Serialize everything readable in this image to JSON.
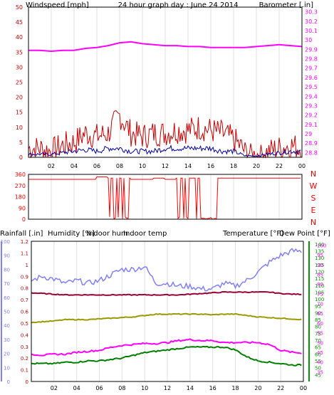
{
  "colors": {
    "wind": "#cc0000",
    "windAvg": "#0000aa",
    "baro": "#ff00ff",
    "dir": "#ff0000",
    "rain": "#cc0000",
    "hum": "#8080ff",
    "inHum": "#999900",
    "inTemp": "#990033",
    "temp": "#008000",
    "dew": "#ff00ff",
    "tempAxis": "#009900",
    "title": "#0000cc"
  },
  "chart_data": [
    {
      "type": "line",
      "title": "24 hour graph day : June 24 2014",
      "left_axis_label": "Windspeed [mph]",
      "right_axis_label": "Barometer [.in]",
      "left_ticks": [
        "0",
        "5",
        "10",
        "15",
        "20",
        "25",
        "30",
        "35",
        "40",
        "45",
        "50"
      ],
      "right_ticks": [
        "28.8",
        "28.9",
        "29",
        "29.1",
        "29.2",
        "29.3",
        "29.4",
        "29.5",
        "29.6",
        "29.7",
        "29.8",
        "29.9",
        "30",
        "30.1",
        "30.2",
        "30.3"
      ],
      "x_ticks": [
        "02",
        "04",
        "06",
        "08",
        "10",
        "12",
        "14",
        "16",
        "18",
        "20",
        "22",
        "00"
      ],
      "xlim": [
        0,
        24
      ],
      "ylim_left": [
        0,
        50
      ],
      "ylim_right": [
        28.75,
        30.35
      ],
      "series": [
        {
          "key": "gust",
          "x": [
            0,
            1,
            2,
            3,
            4,
            5,
            6,
            7,
            8,
            9,
            10,
            11,
            12,
            13,
            14,
            15,
            16,
            17,
            18,
            19,
            20,
            21,
            22,
            23,
            24
          ],
          "values": [
            3,
            3,
            2,
            4,
            5,
            8,
            7,
            8,
            14,
            8,
            7,
            8,
            8,
            9,
            9,
            10,
            9,
            8,
            6,
            2,
            1,
            2,
            3,
            4,
            3
          ]
        },
        {
          "key": "avg",
          "x": [
            0,
            1,
            2,
            3,
            4,
            5,
            6,
            7,
            8,
            9,
            10,
            11,
            12,
            13,
            14,
            15,
            16,
            17,
            18,
            19,
            20,
            21,
            22,
            23,
            24
          ],
          "values": [
            1,
            1,
            1,
            1.5,
            2,
            2.5,
            2,
            3,
            3,
            2,
            2,
            2,
            3,
            3,
            3,
            3,
            3,
            2,
            2,
            0.5,
            0.5,
            1,
            1.5,
            2,
            2
          ]
        },
        {
          "key": "baro",
          "x": [
            0,
            1,
            2,
            3,
            4,
            5,
            6,
            7,
            8,
            9,
            10,
            11,
            12,
            13,
            14,
            15,
            16,
            17,
            18,
            19,
            20,
            21,
            22,
            23,
            24
          ],
          "values": [
            29.89,
            29.89,
            29.88,
            29.89,
            29.89,
            29.91,
            29.92,
            29.94,
            29.97,
            29.98,
            29.96,
            29.95,
            29.94,
            29.94,
            29.93,
            29.93,
            29.92,
            29.92,
            29.92,
            29.92,
            29.93,
            29.94,
            29.95,
            29.94,
            29.93
          ]
        }
      ]
    },
    {
      "type": "line",
      "title": "",
      "right_letters": [
        "N",
        "W",
        "S",
        "E",
        "N"
      ],
      "left_ticks": [
        "0",
        "90",
        "180",
        "270",
        "360"
      ],
      "ylim": [
        0,
        360
      ],
      "x": [
        0,
        1,
        2,
        3,
        4,
        5,
        6,
        7,
        8,
        9,
        10,
        11,
        12,
        13,
        14,
        15,
        16,
        17,
        18,
        19,
        20,
        21,
        22,
        23,
        24
      ],
      "values": [
        320,
        320,
        320,
        320,
        320,
        320,
        340,
        180,
        200,
        320,
        320,
        330,
        320,
        200,
        180,
        200,
        210,
        330,
        330,
        330,
        330,
        330,
        330,
        330,
        300
      ]
    },
    {
      "type": "line",
      "title": "",
      "legend": [
        "Rainfall [.in]",
        "Humidity [%]",
        "Indoor hum",
        "Indoor temp",
        "Temperature [°F]",
        "Dew Point [°F]"
      ],
      "rain_ticks": [
        "0",
        "0.1",
        "0.2",
        "0.3",
        "0.4",
        "0.5",
        "0.6",
        "0.7",
        "0.8",
        "0.9",
        "1",
        "1.1",
        "1.2"
      ],
      "hum_ticks": [
        "0",
        "10",
        "20",
        "30",
        "40",
        "50",
        "60",
        "70",
        "80",
        "90",
        "100"
      ],
      "temp_ticks": [
        "45",
        "50",
        "55",
        "60",
        "65",
        "70",
        "75",
        "80",
        "85",
        "90",
        "95",
        "100",
        "105",
        "110",
        "115",
        "120",
        "125",
        "130",
        "135",
        "140"
      ],
      "dew_ticks": [
        "35",
        "40",
        "45",
        "50",
        "55",
        "60",
        "65",
        "70",
        "75",
        "80",
        "85",
        "90",
        "95",
        "100"
      ],
      "x": [
        0,
        1,
        2,
        3,
        4,
        5,
        6,
        7,
        8,
        9,
        10,
        11,
        12,
        13,
        14,
        15,
        16,
        17,
        18,
        19,
        20,
        21,
        22,
        23,
        24
      ],
      "series": [
        {
          "key": "humidity",
          "values": [
            72,
            75,
            73,
            70,
            72,
            70,
            72,
            76,
            80,
            80,
            82,
            70,
            70,
            68,
            68,
            66,
            66,
            70,
            68,
            72,
            78,
            85,
            90,
            93,
            93
          ]
        },
        {
          "key": "indoor_temp",
          "values": [
            104.5,
            104,
            103.5,
            103,
            103,
            103,
            103,
            103,
            103,
            103,
            103,
            103,
            103,
            103,
            103.5,
            104,
            104.5,
            105,
            105,
            105,
            105,
            105,
            104,
            103.5,
            103.5
          ]
        },
        {
          "key": "indoor_hum",
          "values": [
            83,
            83.5,
            84,
            85,
            85,
            85,
            85.5,
            86,
            86.5,
            87,
            88,
            89,
            89,
            89,
            89,
            89,
            88.5,
            89,
            89,
            88,
            87,
            86.5,
            86,
            85.5,
            85
          ]
        },
        {
          "key": "temperature",
          "values": [
            53,
            53,
            53,
            54,
            54,
            55,
            55,
            56,
            57,
            59,
            61,
            62,
            63,
            64,
            65,
            65,
            65,
            65,
            63,
            58,
            55,
            54,
            53,
            52,
            52
          ]
        },
        {
          "key": "dew_point",
          "values": [
            44,
            43.5,
            44,
            44,
            45,
            45.5,
            46,
            47.5,
            48.5,
            49,
            49.5,
            49.5,
            50,
            51,
            51.5,
            51,
            51,
            50,
            50,
            50,
            50,
            49,
            46,
            45,
            44.5
          ]
        },
        {
          "key": "rain",
          "values": [
            0,
            0,
            0,
            0,
            0,
            0,
            0,
            0,
            0,
            0,
            0,
            0,
            0,
            0,
            0,
            0,
            0,
            0,
            0,
            0,
            0,
            0,
            0,
            0,
            0
          ]
        }
      ]
    }
  ]
}
